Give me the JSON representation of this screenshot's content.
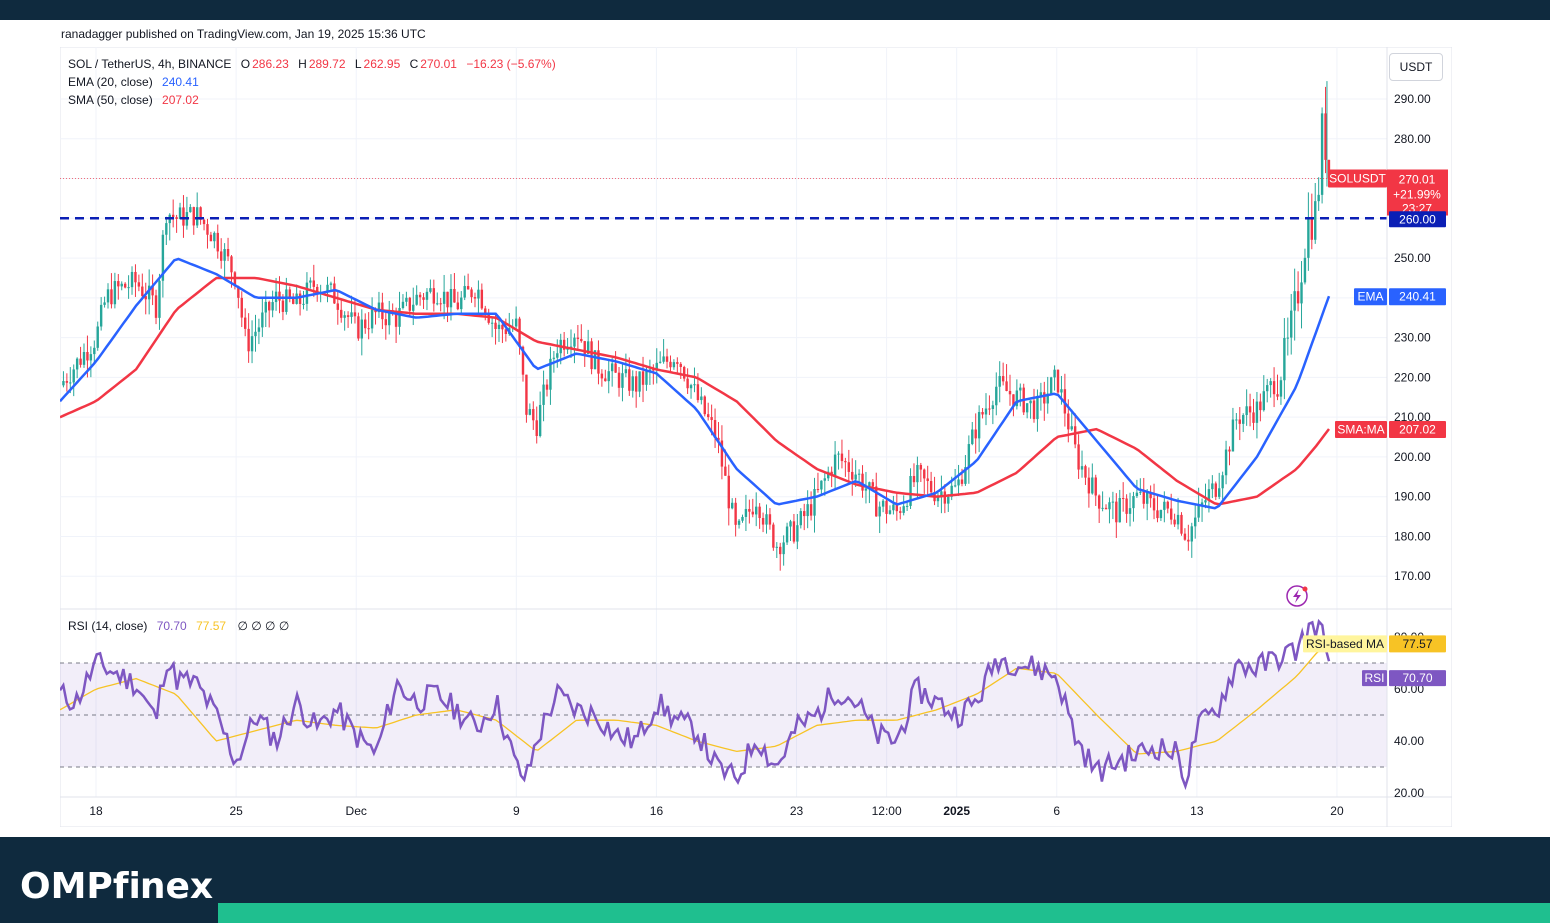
{
  "attribution": "ranadagger published on TradingView.com, Jan 19, 2025 15:36 UTC",
  "symbol_line": {
    "symbol": "SOL / TetherUS, 4h, BINANCE",
    "o_label": "O",
    "o": "286.23",
    "h_label": "H",
    "h": "289.72",
    "l_label": "L",
    "l": "262.95",
    "c_label": "C",
    "c": "270.01",
    "change": "−16.23 (−5.67%)"
  },
  "ema_legend": {
    "label": "EMA (20, close)",
    "value": "240.41"
  },
  "sma_legend": {
    "label": "SMA (50, close)",
    "value": "207.02"
  },
  "rsi_legend": {
    "label": "RSI (14, close)",
    "value": "70.70",
    "ma_value": "77.57",
    "extra": "∅ ∅ ∅ ∅"
  },
  "currency": "USDT",
  "price_labels": {
    "symbol_tag": "SOLUSDT",
    "price": "270.01",
    "pct": "+21.99%",
    "countdown": "23:27",
    "level": "260.00",
    "ema_tag": "EMA",
    "ema": "240.41",
    "sma_tag": "SMA:MA",
    "sma": "207.02",
    "rsima_tag": "RSI-based MA",
    "rsima": "77.57",
    "rsi_tag": "RSI",
    "rsi": "70.70"
  },
  "colors": {
    "up": "#26a69a",
    "down": "#f23645",
    "ema": "#2962ff",
    "sma": "#f23645",
    "rsi": "#7e57c2",
    "rsi_ma": "#f7c325",
    "level": "#0b1fb5",
    "grid": "#f0f3fa",
    "header": "#0f2a3e",
    "accent": "#1fbf8f"
  },
  "chart_data": {
    "type": "candlestick",
    "timeframe": "4h",
    "price_axis": {
      "ticks": [
        170,
        180,
        190,
        200,
        210,
        220,
        230,
        240,
        250,
        260,
        270,
        280,
        290
      ],
      "range": [
        165,
        297
      ]
    },
    "price_tick_labels": [
      "170.00",
      "180.00",
      "190.00",
      "200.00",
      "210.00",
      "220.00",
      "230.00",
      "240.00",
      "250.00",
      "260.00",
      "270.00",
      "280.00",
      "290.00"
    ],
    "x_tick_labels": [
      "18",
      "25",
      "Dec",
      "9",
      "16",
      "23",
      "12:00",
      "2025",
      "6",
      "13",
      "20"
    ],
    "x_tick_days": [
      0,
      7,
      13,
      21,
      28,
      35,
      39.5,
      43,
      48,
      55,
      62
    ],
    "horizontal_level": 260,
    "last_close": 270.01,
    "anchors_days": [
      -1.8,
      0,
      0.5,
      1,
      2,
      3,
      3.5,
      4,
      5,
      6,
      7,
      7.5,
      8,
      9,
      10,
      11,
      12,
      13,
      14,
      15,
      16,
      17,
      18,
      19,
      20,
      21,
      21.5,
      22,
      23,
      24,
      25,
      26,
      27,
      28,
      29,
      30,
      31,
      32,
      33,
      33.5,
      34,
      35,
      36,
      37,
      38,
      39,
      40,
      41,
      42,
      43,
      44,
      45,
      46,
      47,
      48,
      49,
      50,
      51,
      52,
      53,
      54,
      54.5,
      55,
      55.5,
      56,
      57,
      58,
      59,
      59.5,
      60,
      60.5,
      61,
      61.3,
      61.6
    ],
    "anchors_close": [
      218,
      230,
      240,
      242,
      244,
      238,
      262,
      260,
      261,
      255,
      245,
      228,
      232,
      240,
      238,
      244,
      240,
      232,
      236,
      235,
      240,
      242,
      238,
      243,
      232,
      233,
      212,
      208,
      228,
      232,
      223,
      220,
      218,
      222,
      226,
      215,
      205,
      180,
      190,
      183,
      178,
      182,
      190,
      200,
      196,
      188,
      186,
      195,
      191,
      192,
      208,
      218,
      215,
      212,
      220,
      200,
      190,
      186,
      190,
      187,
      186,
      180,
      185,
      190,
      193,
      210,
      212,
      220,
      226,
      240,
      258,
      262,
      285,
      270.01
    ],
    "ema20_days": [
      -1.8,
      0,
      2,
      4,
      6,
      8,
      10,
      12,
      14,
      16,
      18,
      20,
      22,
      24,
      26,
      28,
      30,
      32,
      34,
      36,
      38,
      40,
      42,
      44,
      46,
      48,
      50,
      52,
      54,
      56,
      58,
      60,
      61,
      61.6
    ],
    "ema20": [
      214,
      224,
      238,
      250,
      246,
      240,
      240,
      242,
      237,
      235,
      236,
      236,
      222,
      226,
      224,
      221,
      212,
      197,
      188,
      190,
      194,
      188,
      191,
      199,
      214,
      216,
      204,
      192,
      189,
      187,
      200,
      218,
      232,
      240.41
    ],
    "sma50_days": [
      -1.8,
      0,
      2,
      4,
      6,
      8,
      10,
      12,
      14,
      16,
      18,
      20,
      22,
      24,
      26,
      28,
      30,
      32,
      34,
      36,
      38,
      40,
      42,
      44,
      46,
      48,
      50,
      52,
      54,
      56,
      58,
      60,
      61,
      61.6
    ],
    "sma50": [
      210,
      214,
      222,
      237,
      245,
      245,
      243,
      240,
      237,
      236,
      236,
      235,
      229,
      227,
      225,
      222,
      220,
      214,
      204,
      197,
      193,
      191,
      190,
      191,
      196,
      205,
      207,
      202,
      194,
      188,
      190,
      197,
      203,
      207.02
    ],
    "rsi": {
      "ticks": [
        20,
        40,
        60,
        80
      ],
      "tick_labels": [
        "20.00",
        "40.00",
        "60.00",
        "80.00"
      ],
      "bands": [
        30,
        50,
        70
      ],
      "range": [
        20,
        88
      ],
      "anchors_days": [
        -1.8,
        -1,
        0,
        1,
        2,
        3,
        3.5,
        4,
        5,
        6,
        7,
        8,
        9,
        10,
        11,
        12,
        13,
        14,
        15,
        16,
        17,
        18,
        19,
        20,
        21,
        21.5,
        22,
        23,
        24,
        25,
        26,
        27,
        28,
        29,
        30,
        31,
        32,
        33,
        33.5,
        34,
        35,
        36,
        37,
        38,
        39,
        40,
        41,
        42,
        43,
        44,
        45,
        46,
        47,
        48,
        49,
        50,
        51,
        52,
        53,
        54,
        54.5,
        55,
        56,
        57,
        58,
        59,
        60,
        60.5,
        61,
        61.3,
        61.6
      ],
      "anchors_value": [
        58,
        55,
        70,
        66,
        62,
        48,
        72,
        64,
        62,
        50,
        32,
        50,
        40,
        55,
        45,
        52,
        42,
        35,
        62,
        55,
        58,
        52,
        45,
        55,
        30,
        25,
        40,
        58,
        52,
        50,
        42,
        40,
        55,
        48,
        44,
        30,
        25,
        42,
        35,
        30,
        45,
        50,
        60,
        55,
        42,
        40,
        60,
        55,
        50,
        55,
        72,
        70,
        68,
        65,
        40,
        28,
        32,
        35,
        38,
        35,
        25,
        45,
        52,
        70,
        68,
        72,
        75,
        82,
        85,
        80,
        70.7
      ],
      "ma_days": [
        -1.8,
        0,
        2,
        4,
        6,
        8,
        10,
        12,
        14,
        16,
        18,
        20,
        22,
        24,
        26,
        28,
        30,
        32,
        34,
        36,
        38,
        40,
        42,
        44,
        46,
        48,
        50,
        52,
        54,
        56,
        58,
        60,
        61,
        61.6
      ],
      "ma_value": [
        52,
        60,
        64,
        58,
        40,
        44,
        48,
        46,
        45,
        50,
        52,
        48,
        36,
        48,
        48,
        46,
        40,
        36,
        38,
        46,
        48,
        48,
        52,
        58,
        68,
        66,
        50,
        35,
        36,
        40,
        52,
        65,
        74,
        77.57
      ]
    }
  }
}
